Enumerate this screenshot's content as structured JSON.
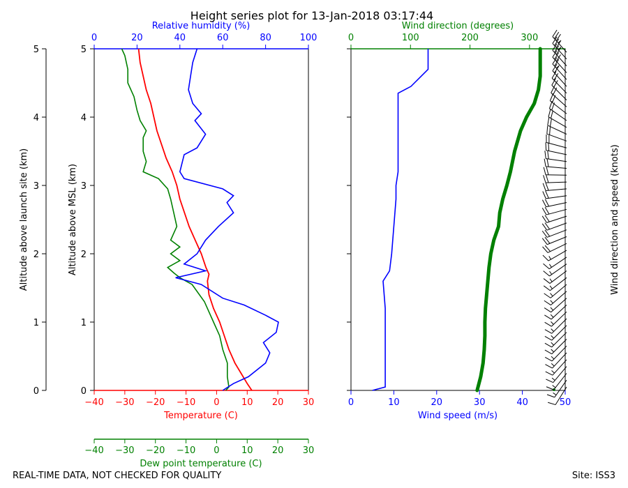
{
  "title": "Height series plot for 13-Jan-2018 03:17:44",
  "footer_left": "REAL-TIME DATA, NOT CHECKED FOR QUALITY",
  "footer_right": "Site: ISS3",
  "colors": {
    "temperature": "#ff0000",
    "dewpoint": "#008000",
    "rh": "#0000ff",
    "wind_speed": "#0000ff",
    "wind_dir": "#008000",
    "axis": "#000000"
  },
  "chart_data": [
    {
      "type": "line",
      "title": "Height series plot for 13-Jan-2018 03:17:44",
      "y_axis_outer": {
        "label": "Altitude above launch site (km)",
        "range": [
          0,
          5
        ],
        "ticks": [
          "0",
          "1",
          "2",
          "3",
          "4",
          "5"
        ]
      },
      "y_axis_inner": {
        "label": "Altitude above MSL (km)",
        "range": [
          0,
          5
        ],
        "ticks": [
          "0",
          "1",
          "2",
          "3",
          "4",
          "5"
        ]
      },
      "x_axis_temperature": {
        "label": "Temperature (C)",
        "range": [
          -40,
          30
        ],
        "ticks": [
          "−40",
          "−30",
          "−20",
          "−10",
          "0",
          "10",
          "20",
          "30"
        ]
      },
      "x_axis_dewpoint": {
        "label": "Dew point temperature (C)",
        "range": [
          -40,
          30
        ],
        "ticks": [
          "−40",
          "−30",
          "−20",
          "−10",
          "0",
          "10",
          "20",
          "30"
        ]
      },
      "x_axis_rh": {
        "label": "Relative humidity (%)",
        "range": [
          0,
          100
        ],
        "ticks": [
          "0",
          "20",
          "40",
          "60",
          "80",
          "100"
        ]
      },
      "series": [
        {
          "name": "Temperature",
          "axis": "temperature",
          "points": [
            [
              11.5,
              0
            ],
            [
              10,
              0.1
            ],
            [
              8,
              0.25
            ],
            [
              6,
              0.4
            ],
            [
              4,
              0.6
            ],
            [
              2.5,
              0.8
            ],
            [
              1,
              1.0
            ],
            [
              -1,
              1.2
            ],
            [
              -2.5,
              1.4
            ],
            [
              -3,
              1.6
            ],
            [
              -2.5,
              1.7
            ],
            [
              -3.5,
              1.8
            ],
            [
              -5,
              2.0
            ],
            [
              -7,
              2.2
            ],
            [
              -9,
              2.4
            ],
            [
              -10.5,
              2.6
            ],
            [
              -12,
              2.8
            ],
            [
              -13,
              3.0
            ],
            [
              -14.5,
              3.2
            ],
            [
              -16.5,
              3.4
            ],
            [
              -18,
              3.6
            ],
            [
              -19.5,
              3.8
            ],
            [
              -20.5,
              4.0
            ],
            [
              -21.5,
              4.2
            ],
            [
              -23,
              4.4
            ],
            [
              -24,
              4.6
            ],
            [
              -25,
              4.8
            ],
            [
              -25.5,
              5.0
            ]
          ]
        },
        {
          "name": "Dew point",
          "axis": "dewpoint",
          "points": [
            [
              3,
              0
            ],
            [
              4,
              0.05
            ],
            [
              3.5,
              0.2
            ],
            [
              3.5,
              0.4
            ],
            [
              2,
              0.6
            ],
            [
              1,
              0.8
            ],
            [
              -1,
              1.0
            ],
            [
              -4,
              1.3
            ],
            [
              -8,
              1.55
            ],
            [
              -12,
              1.65
            ],
            [
              -14,
              1.72
            ],
            [
              -16,
              1.8
            ],
            [
              -12,
              1.9
            ],
            [
              -15,
              2.0
            ],
            [
              -12,
              2.1
            ],
            [
              -15,
              2.2
            ],
            [
              -13,
              2.4
            ],
            [
              -14,
              2.6
            ],
            [
              -15,
              2.8
            ],
            [
              -16,
              2.95
            ],
            [
              -19,
              3.1
            ],
            [
              -24,
              3.2
            ],
            [
              -23,
              3.35
            ],
            [
              -24,
              3.5
            ],
            [
              -24,
              3.7
            ],
            [
              -23,
              3.8
            ],
            [
              -25,
              3.95
            ],
            [
              -26,
              4.1
            ],
            [
              -27,
              4.3
            ],
            [
              -29,
              4.5
            ],
            [
              -29,
              4.7
            ],
            [
              -30,
              4.9
            ],
            [
              -31,
              5.0
            ]
          ]
        },
        {
          "name": "Relative humidity",
          "axis": "rh",
          "points": [
            [
              60,
              0
            ],
            [
              65,
              0.1
            ],
            [
              72,
              0.2
            ],
            [
              80,
              0.4
            ],
            [
              82,
              0.55
            ],
            [
              79,
              0.7
            ],
            [
              85,
              0.85
            ],
            [
              86,
              1.0
            ],
            [
              80,
              1.1
            ],
            [
              70,
              1.25
            ],
            [
              60,
              1.35
            ],
            [
              50,
              1.55
            ],
            [
              38,
              1.65
            ],
            [
              52,
              1.75
            ],
            [
              42,
              1.85
            ],
            [
              48,
              2.0
            ],
            [
              52,
              2.2
            ],
            [
              58,
              2.4
            ],
            [
              65,
              2.6
            ],
            [
              62,
              2.75
            ],
            [
              65,
              2.85
            ],
            [
              60,
              2.95
            ],
            [
              42,
              3.1
            ],
            [
              40,
              3.2
            ],
            [
              42,
              3.45
            ],
            [
              48,
              3.55
            ],
            [
              52,
              3.75
            ],
            [
              47,
              3.95
            ],
            [
              50,
              4.05
            ],
            [
              46,
              4.2
            ],
            [
              44,
              4.4
            ],
            [
              45,
              4.6
            ],
            [
              46,
              4.8
            ],
            [
              48,
              5.0
            ]
          ]
        }
      ]
    },
    {
      "type": "line",
      "x_axis_speed": {
        "label": "Wind speed (m/s)",
        "range": [
          0,
          50
        ],
        "ticks": [
          "0",
          "10",
          "20",
          "30",
          "40",
          "50"
        ]
      },
      "x_axis_direction": {
        "label": "Wind direction (degrees)",
        "range": [
          0,
          360
        ],
        "ticks": [
          "0",
          "100",
          "200",
          "300"
        ]
      },
      "y_range": [
        0,
        5
      ],
      "series": [
        {
          "name": "Wind speed",
          "axis": "speed",
          "points": [
            [
              5,
              0
            ],
            [
              8,
              0.05
            ],
            [
              8,
              0.4
            ],
            [
              8,
              0.8
            ],
            [
              8,
              1.2
            ],
            [
              7.5,
              1.6
            ],
            [
              9,
              1.75
            ],
            [
              9.5,
              2.0
            ],
            [
              10,
              2.4
            ],
            [
              10.5,
              2.8
            ],
            [
              10.5,
              3.0
            ],
            [
              11,
              3.2
            ],
            [
              11,
              3.6
            ],
            [
              11,
              3.8
            ],
            [
              11,
              4.0
            ],
            [
              11,
              4.2
            ],
            [
              11,
              4.35
            ],
            [
              14,
              4.45
            ],
            [
              18,
              4.7
            ],
            [
              18,
              5.0
            ]
          ]
        },
        {
          "name": "Wind direction",
          "axis": "direction",
          "points": [
            [
              212,
              0
            ],
            [
              218,
              0.2
            ],
            [
              222,
              0.4
            ],
            [
              224,
              0.6
            ],
            [
              225,
              0.8
            ],
            [
              225,
              1.0
            ],
            [
              226,
              1.2
            ],
            [
              228,
              1.4
            ],
            [
              230,
              1.6
            ],
            [
              232,
              1.8
            ],
            [
              235,
              2.0
            ],
            [
              240,
              2.2
            ],
            [
              248,
              2.4
            ],
            [
              250,
              2.6
            ],
            [
              255,
              2.8
            ],
            [
              262,
              3.0
            ],
            [
              268,
              3.2
            ],
            [
              275,
              3.5
            ],
            [
              285,
              3.8
            ],
            [
              295,
              4.0
            ],
            [
              308,
              4.2
            ],
            [
              315,
              4.4
            ],
            [
              318,
              4.6
            ],
            [
              318,
              4.8
            ],
            [
              318,
              5.0
            ]
          ]
        }
      ]
    },
    {
      "type": "barbs",
      "label": "Wind direction and speed (knots)",
      "altitudes_km": [
        0.05,
        0.15,
        0.25,
        0.35,
        0.45,
        0.55,
        0.65,
        0.75,
        0.85,
        0.95,
        1.05,
        1.15,
        1.25,
        1.35,
        1.45,
        1.55,
        1.65,
        1.75,
        1.85,
        1.95,
        2.05,
        2.15,
        2.25,
        2.35,
        2.45,
        2.55,
        2.65,
        2.75,
        2.85,
        2.95,
        3.05,
        3.15,
        3.25,
        3.35,
        3.45,
        3.55,
        3.65,
        3.75,
        3.85,
        3.95,
        4.05,
        4.15,
        4.25,
        4.35,
        4.45,
        4.55,
        4.65,
        4.75,
        4.85,
        4.95
      ],
      "directions_deg": [
        212,
        215,
        218,
        220,
        222,
        223,
        224,
        225,
        225,
        225,
        225,
        226,
        227,
        228,
        229,
        230,
        232,
        233,
        235,
        236,
        240,
        244,
        248,
        249,
        250,
        252,
        255,
        258,
        262,
        265,
        268,
        271,
        275,
        278,
        282,
        285,
        290,
        295,
        300,
        305,
        308,
        312,
        315,
        316,
        318,
        318,
        318,
        318,
        318,
        318
      ],
      "speeds_kt": [
        10,
        15,
        15,
        15,
        15,
        15,
        15,
        15,
        15,
        15,
        15,
        15,
        15,
        15,
        15,
        15,
        15,
        17,
        18,
        19,
        19,
        20,
        20,
        20,
        20,
        20,
        20,
        20,
        20,
        20,
        21,
        21,
        21,
        21,
        21,
        21,
        21,
        21,
        21,
        21,
        21,
        21,
        21,
        21,
        21,
        28,
        30,
        34,
        35,
        35
      ]
    }
  ]
}
